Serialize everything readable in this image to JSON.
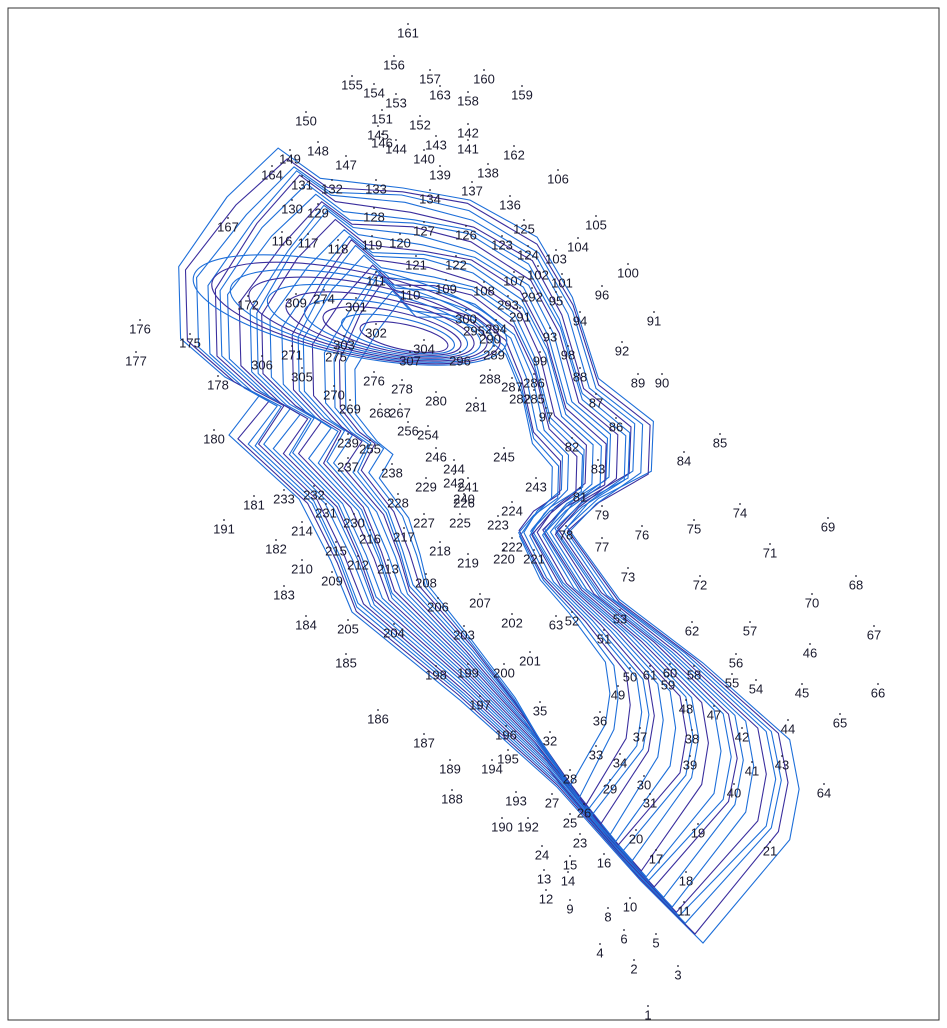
{
  "map": {
    "points": [
      "161",
      "156",
      "155",
      "154",
      "153",
      "157",
      "163",
      "160",
      "158",
      "159",
      "150",
      "151",
      "152",
      "145",
      "146",
      "144",
      "143",
      "142",
      "141",
      "162",
      "140",
      "149",
      "148",
      "147",
      "139",
      "138",
      "106",
      "164",
      "131",
      "132",
      "133",
      "134",
      "137",
      "136",
      "105",
      "130",
      "129",
      "128",
      "127",
      "126",
      "125",
      "123",
      "124",
      "103",
      "104",
      "167",
      "116",
      "117",
      "118",
      "119",
      "120",
      "121",
      "122",
      "100",
      "107",
      "102",
      "101",
      "108",
      "109",
      "110",
      "111",
      "96",
      "95",
      "91",
      "94",
      "93",
      "176",
      "177",
      "175",
      "172",
      "309",
      "274",
      "300",
      "92",
      "98",
      "99",
      "88",
      "89",
      "90",
      "178",
      "306",
      "271",
      "275",
      "305",
      "87",
      "86",
      "85",
      "84",
      "180",
      "83",
      "181",
      "191",
      "75",
      "74",
      "69",
      "71",
      "182",
      "210",
      "209",
      "213",
      "212",
      "72",
      "68",
      "70",
      "183",
      "184",
      "205",
      "204",
      "57",
      "67",
      "46",
      "56",
      "185",
      "198",
      "199",
      "200",
      "58",
      "55",
      "54",
      "45",
      "66",
      "186",
      "197",
      "35",
      "44",
      "65",
      "47",
      "42",
      "187",
      "196",
      "32",
      "38",
      "43",
      "41",
      "195",
      "194",
      "189",
      "33",
      "34",
      "39",
      "28",
      "188",
      "193",
      "27",
      "29",
      "30",
      "31",
      "40",
      "64",
      "26",
      "25",
      "190",
      "192",
      "19",
      "23",
      "20",
      "24",
      "17",
      "16",
      "15",
      "21",
      "13",
      "14",
      "18",
      "12",
      "9",
      "10",
      "11",
      "8",
      "6",
      "5",
      "4",
      "2",
      "3",
      "1",
      "63",
      "52",
      "53",
      "62",
      "51",
      "50",
      "61",
      "60",
      "59",
      "49",
      "48",
      "36",
      "37",
      "73",
      "76",
      "77",
      "78",
      "79",
      "81",
      "82",
      "97",
      "203",
      "202",
      "201",
      "207",
      "206",
      "208",
      "219",
      "218",
      "227",
      "217",
      "216",
      "215",
      "214",
      "220",
      "221",
      "222",
      "223",
      "224",
      "225",
      "226",
      "228",
      "229",
      "230",
      "231",
      "232",
      "233",
      "237",
      "238",
      "239",
      "240",
      "241",
      "242",
      "243",
      "244",
      "246",
      "245",
      "254",
      "255",
      "256",
      "267",
      "268",
      "269",
      "270",
      "276",
      "278",
      "280",
      "281",
      "282",
      "285",
      "286",
      "287",
      "288",
      "289",
      "290",
      "291",
      "292",
      "293",
      "294",
      "295",
      "296",
      "301",
      "302",
      "303",
      "304",
      "307"
    ]
  }
}
